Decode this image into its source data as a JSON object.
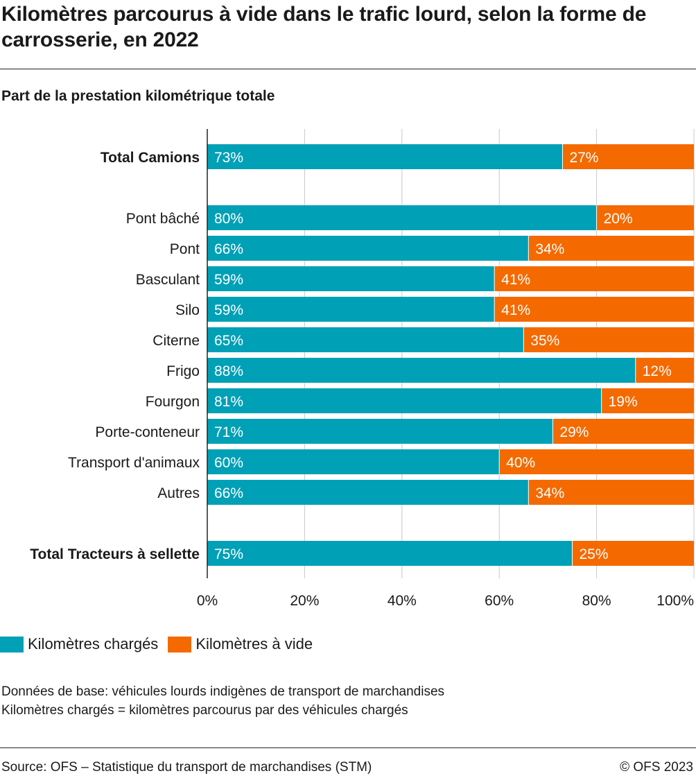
{
  "title": "Kilomètres parcourus à vide dans le trafic lourd, selon la forme de carrosserie, en 2022",
  "subtitle": "Part de la prestation kilométrique totale",
  "legend": {
    "loaded": "Kilomètres chargés",
    "empty": "Kilomètres à vide"
  },
  "notes": {
    "line1": "Données de base: véhicules lourds indigènes de transport de marchandises",
    "line2": "Kilomètres chargés = kilomètres parcourus par des véhicules chargés"
  },
  "footer": {
    "source": "Source: OFS – Statistique du transport de marchandises (STM)",
    "copyright": "© OFS 2023"
  },
  "colors": {
    "loaded": "#00a0b6",
    "empty": "#f46a00"
  },
  "chart_data": {
    "type": "bar",
    "orientation": "horizontal",
    "stacked": true,
    "categories": [
      "Total Camions",
      "Pont bâché",
      "Pont",
      "Basculant",
      "Silo",
      "Citerne",
      "Frigo",
      "Fourgon",
      "Porte-conteneur",
      "Transport d'animaux",
      "Autres",
      "Total Tracteurs à sellette"
    ],
    "bold_categories": [
      "Total Camions",
      "Total Tracteurs à sellette"
    ],
    "series": [
      {
        "name": "Kilomètres chargés",
        "values": [
          73,
          80,
          66,
          59,
          59,
          65,
          88,
          81,
          71,
          60,
          66,
          75
        ]
      },
      {
        "name": "Kilomètres à vide",
        "values": [
          27,
          20,
          34,
          41,
          41,
          35,
          12,
          19,
          29,
          40,
          34,
          25
        ]
      }
    ],
    "xlim": [
      0,
      100
    ],
    "xticks": [
      "0%",
      "20%",
      "40%",
      "60%",
      "80%",
      "100%"
    ],
    "grid": true,
    "legend_position": "bottom"
  }
}
